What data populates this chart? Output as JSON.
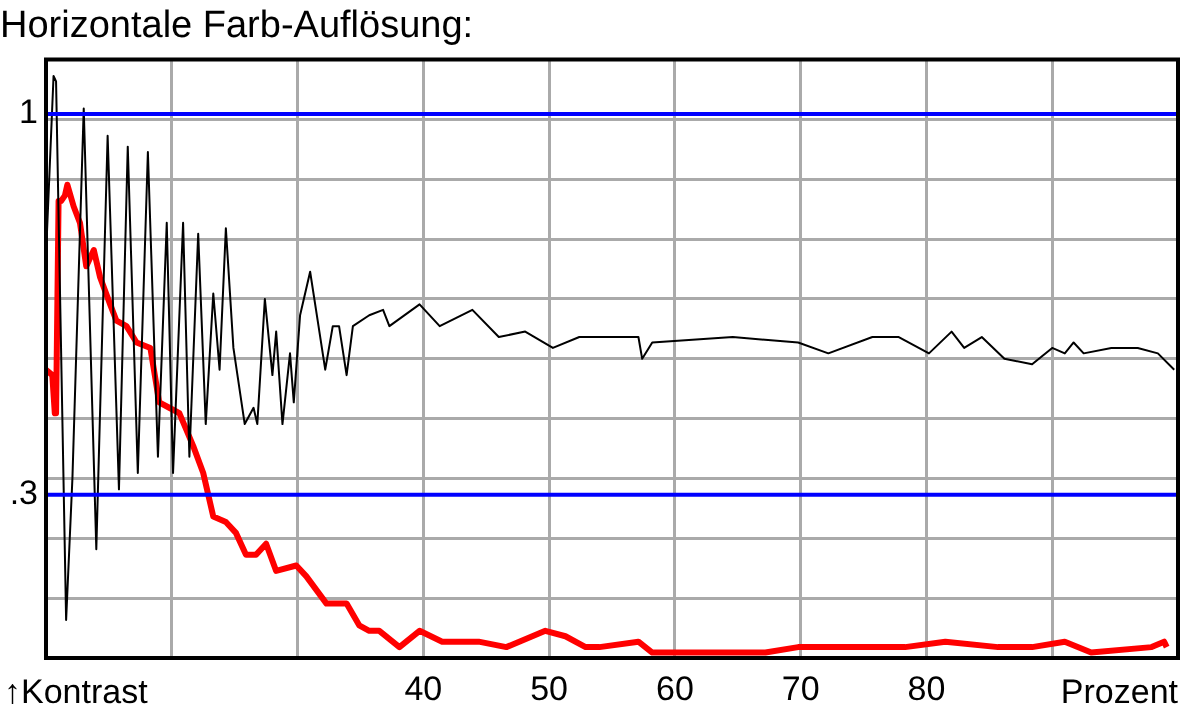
{
  "chart_data": {
    "type": "line",
    "title": "Horizontale Farb-Auflösung:",
    "xlabel": "Prozent",
    "ylabel": "↑Kontrast",
    "xlim": [
      10,
      100
    ],
    "xticks": [
      {
        "value": 20,
        "label": null
      },
      {
        "value": 30,
        "label": null
      },
      40,
      50,
      60,
      70,
      80,
      {
        "value": 90,
        "label": null
      }
    ],
    "ylim": [
      0,
      1.1
    ],
    "yticks": [
      {
        "value": 0.11,
        "label": null
      },
      {
        "value": 0.22,
        "label": null
      },
      {
        "value": 0.3,
        "label": ".3"
      },
      {
        "value": 0.33,
        "label": null
      },
      {
        "value": 0.44,
        "label": null
      },
      {
        "value": 0.55,
        "label": null
      },
      {
        "value": 0.66,
        "label": null
      },
      {
        "value": 0.77,
        "label": null
      },
      {
        "value": 0.88,
        "label": null
      },
      {
        "value": 0.99,
        "label": null
      },
      {
        "value": 1,
        "label": "1"
      }
    ],
    "grid": true,
    "legend": false,
    "marker": "none",
    "line_style": "solid",
    "ref_lines": [
      {
        "axis": "y",
        "value": 1,
        "color": "#0000ff"
      },
      {
        "axis": "y",
        "value": 0.3,
        "color": "#0000ff"
      }
    ],
    "series": [
      {
        "color": "#000000",
        "x": [
          10.0,
          10.6,
          10.8,
          11.6,
          12.1,
          13.0,
          14.0,
          14.9,
          15.8,
          16.5,
          17.3,
          18.1,
          18.9,
          19.6,
          20.1,
          20.9,
          21.4,
          22.1,
          22.7,
          23.3,
          23.8,
          24.3,
          24.9,
          25.8,
          26.5,
          26.8,
          27.4,
          28.0,
          28.3,
          28.8,
          29.4,
          29.7,
          30.2,
          31.0,
          31.6,
          32.2,
          32.8,
          33.3,
          33.9,
          34.4,
          35.7,
          36.8,
          37.3,
          39.7,
          41.3,
          43.9,
          46.0,
          48.1,
          50.3,
          52.4,
          54.0,
          57.1,
          57.4,
          58.2,
          64.6,
          69.8,
          72.2,
          75.7,
          77.8,
          80.2,
          82.0,
          83.0,
          84.4,
          86.2,
          88.4,
          90.0,
          91.0,
          91.7,
          92.5,
          94.7,
          96.8,
          98.4,
          99.7
        ],
        "values": [
          0.74,
          1.07,
          1.06,
          0.07,
          0.33,
          1.01,
          0.2,
          0.96,
          0.31,
          0.94,
          0.34,
          0.93,
          0.37,
          0.8,
          0.34,
          0.8,
          0.37,
          0.78,
          0.43,
          0.67,
          0.53,
          0.79,
          0.57,
          0.43,
          0.46,
          0.43,
          0.66,
          0.52,
          0.6,
          0.43,
          0.56,
          0.47,
          0.63,
          0.71,
          0.62,
          0.53,
          0.61,
          0.61,
          0.52,
          0.61,
          0.63,
          0.64,
          0.61,
          0.65,
          0.61,
          0.64,
          0.59,
          0.6,
          0.57,
          0.59,
          0.59,
          0.59,
          0.55,
          0.58,
          0.59,
          0.58,
          0.56,
          0.59,
          0.59,
          0.56,
          0.6,
          0.57,
          0.59,
          0.55,
          0.54,
          0.57,
          0.56,
          0.58,
          0.56,
          0.57,
          0.57,
          0.56,
          0.53
        ]
      },
      {
        "color": "#ff0000",
        "x": [
          10.0,
          10.5,
          10.7,
          10.8,
          11.0,
          11.2,
          11.5,
          11.7,
          12.2,
          12.7,
          13.2,
          13.8,
          14.3,
          15.1,
          15.6,
          16.4,
          17.2,
          18.3,
          19.0,
          19.8,
          20.6,
          21.7,
          22.5,
          23.3,
          24.3,
          25.1,
          25.9,
          26.7,
          27.5,
          28.3,
          29.9,
          30.7,
          32.3,
          33.9,
          34.9,
          35.7,
          36.5,
          38.1,
          39.7,
          41.5,
          44.4,
          46.6,
          49.7,
          51.3,
          52.9,
          54.0,
          57.1,
          58.2,
          61.9,
          67.2,
          69.8,
          75.1,
          78.3,
          81.5,
          85.7,
          88.4,
          91.0,
          93.1,
          97.9,
          98.9,
          99.1
        ],
        "values": [
          0.53,
          0.52,
          0.45,
          0.45,
          0.84,
          0.84,
          0.85,
          0.87,
          0.83,
          0.8,
          0.72,
          0.75,
          0.7,
          0.65,
          0.62,
          0.61,
          0.58,
          0.57,
          0.47,
          0.46,
          0.45,
          0.39,
          0.34,
          0.26,
          0.25,
          0.23,
          0.19,
          0.19,
          0.21,
          0.16,
          0.17,
          0.15,
          0.1,
          0.1,
          0.06,
          0.05,
          0.05,
          0.02,
          0.05,
          0.03,
          0.03,
          0.02,
          0.05,
          0.04,
          0.02,
          0.02,
          0.03,
          0.01,
          0.01,
          0.01,
          0.02,
          0.02,
          0.02,
          0.03,
          0.02,
          0.02,
          0.03,
          0.01,
          0.02,
          0.03,
          0.02
        ]
      }
    ]
  }
}
